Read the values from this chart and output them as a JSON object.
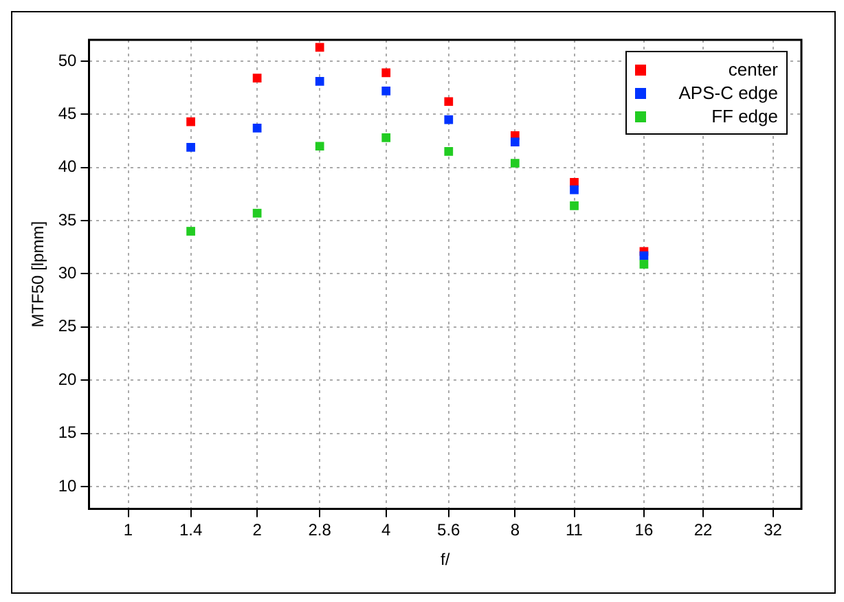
{
  "chart_data": {
    "type": "scatter",
    "xlabel": "f/",
    "ylabel": "MTF50 [lpmm]",
    "x": [
      1.4,
      2,
      2.8,
      4,
      5.6,
      8,
      11,
      16
    ],
    "series": [
      {
        "name": "center",
        "color": "#ff0000",
        "values": [
          44.3,
          48.4,
          51.3,
          48.9,
          46.2,
          43.0,
          38.6,
          32.1
        ]
      },
      {
        "name": "APS-C edge",
        "color": "#0033ff",
        "values": [
          41.9,
          43.7,
          48.1,
          47.2,
          44.5,
          42.4,
          37.9,
          31.7
        ]
      },
      {
        "name": "FF edge",
        "color": "#22cc22",
        "values": [
          34.0,
          35.7,
          42.0,
          42.8,
          41.5,
          40.4,
          36.4,
          30.9
        ]
      }
    ],
    "log": "x",
    "xlim": [
      0.81,
      37.3
    ],
    "xticks": [
      1,
      1.4,
      2,
      2.8,
      4,
      5.6,
      8,
      11,
      16,
      22,
      32
    ],
    "ylim": [
      7.9,
      52
    ],
    "yticks": [
      10,
      15,
      20,
      25,
      30,
      35,
      40,
      45,
      50
    ],
    "grid": true,
    "legend": "top right",
    "marker": "square"
  }
}
